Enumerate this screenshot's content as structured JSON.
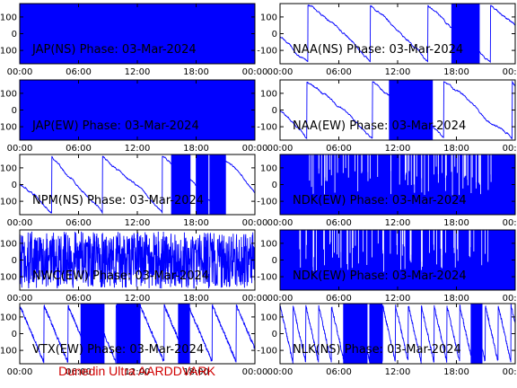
{
  "footer": {
    "text": "Dunedin Ultra AARDDVARK",
    "color": "#d00000"
  },
  "colors": {
    "trace": "#0000ff",
    "axes": "#000000",
    "background": "#ffffff"
  },
  "chart_data": [
    {
      "type": "line",
      "title": "JAP(NS) Phase: 03-Mar-2024",
      "style": "dense",
      "x_ticks": [
        "00:00",
        "06:00",
        "12:00",
        "18:00",
        "00:00"
      ],
      "y_ticks": [
        100,
        0,
        -100
      ],
      "xlim_hours": [
        0,
        24
      ],
      "ylim": [
        -180,
        180
      ],
      "grid": false
    },
    {
      "type": "line",
      "title": "NAA(NS) Phase: 03-Mar-2024",
      "style": "drift",
      "x_ticks": [
        "00:00",
        "06:00",
        "12:00",
        "18:00",
        "00:00"
      ],
      "y_ticks": [
        100,
        0,
        -100
      ],
      "xlim_hours": [
        0,
        24
      ],
      "ylim": [
        -180,
        180
      ],
      "grid": false
    },
    {
      "type": "line",
      "title": "JAP(EW) Phase: 03-Mar-2024",
      "style": "dense",
      "x_ticks": [
        "00:00",
        "06:00",
        "12:00",
        "18:00",
        "00:00"
      ],
      "y_ticks": [
        100,
        0,
        -100
      ],
      "xlim_hours": [
        0,
        24
      ],
      "ylim": [
        -180,
        180
      ],
      "grid": false
    },
    {
      "type": "line",
      "title": "NAA(EW) Phase: 03-Mar-2024",
      "style": "drift",
      "x_ticks": [
        "00:00",
        "06:00",
        "12:00",
        "18:00",
        "00:00"
      ],
      "y_ticks": [
        100,
        0,
        -100
      ],
      "xlim_hours": [
        0,
        24
      ],
      "ylim": [
        -180,
        180
      ],
      "grid": false
    },
    {
      "type": "line",
      "title": "NPM(NS) Phase: 03-Mar-2024",
      "style": "drift",
      "x_ticks": [
        "00:00",
        "06:00",
        "12:00",
        "18:00",
        "00:00"
      ],
      "y_ticks": [
        100,
        0,
        -100
      ],
      "xlim_hours": [
        0,
        24
      ],
      "ylim": [
        -180,
        180
      ],
      "grid": false
    },
    {
      "type": "line",
      "title": "NDK(EW) Phase: 03-Mar-2024",
      "style": "dense",
      "x_ticks": [
        "00:00",
        "06:00",
        "12:00",
        "18:00",
        "00:00"
      ],
      "y_ticks": [
        100,
        0,
        -100
      ],
      "xlim_hours": [
        0,
        24
      ],
      "ylim": [
        -180,
        180
      ],
      "grid": false
    },
    {
      "type": "line",
      "title": "NWC(EW) Phase: 03-Mar-2024",
      "style": "noisy",
      "x_ticks": [
        "00:00",
        "06:00",
        "12:00",
        "18:00",
        "00:00"
      ],
      "y_ticks": [
        100,
        0,
        -100
      ],
      "xlim_hours": [
        0,
        24
      ],
      "ylim": [
        -180,
        180
      ],
      "grid": false
    },
    {
      "type": "line",
      "title": "NDK(EW) Phase: 03-Mar-2024",
      "style": "dense",
      "x_ticks": [
        "00:00",
        "06:00",
        "12:00",
        "18:00",
        "00:00"
      ],
      "y_ticks": [
        100,
        0,
        -100
      ],
      "xlim_hours": [
        0,
        24
      ],
      "ylim": [
        -180,
        180
      ],
      "grid": false
    },
    {
      "type": "line",
      "title": "VTX(EW) Phase: 03-Mar-2024",
      "style": "sawtooth",
      "x_ticks": [
        "00:00",
        "06:00",
        "12:00",
        "18:00",
        "00:00"
      ],
      "y_ticks": [
        100,
        0,
        -100
      ],
      "xlim_hours": [
        0,
        24
      ],
      "ylim": [
        -180,
        180
      ],
      "grid": false
    },
    {
      "type": "line",
      "title": "NLK(NS) Phase: 03-Mar-2024",
      "style": "sawtooth",
      "x_ticks": [
        "00:00",
        "06:00",
        "12:00",
        "18:00",
        "00:00"
      ],
      "y_ticks": [
        100,
        0,
        -100
      ],
      "xlim_hours": [
        0,
        24
      ],
      "ylim": [
        -180,
        180
      ],
      "grid": false
    }
  ]
}
